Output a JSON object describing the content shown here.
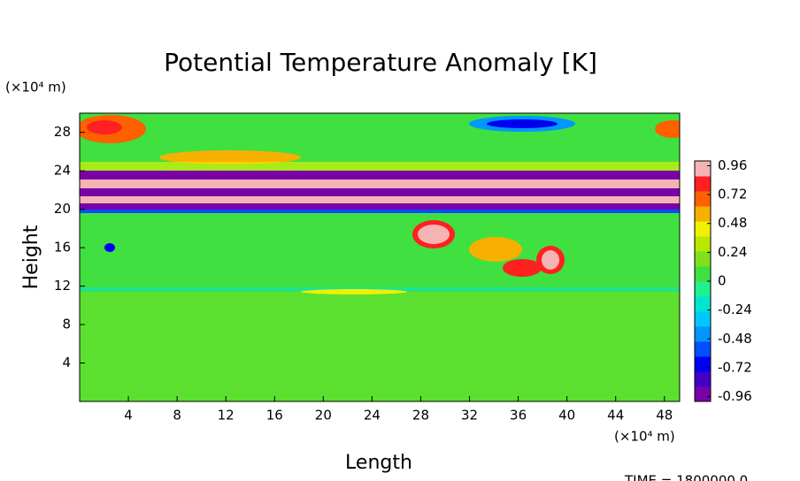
{
  "chart_data": {
    "type": "contour",
    "title": "Potential Temperature Anomaly [K]",
    "x_label": "Length",
    "y_label": "Height",
    "x_unit": "(×10⁴ m)",
    "y_unit": "(×10⁴ m)",
    "footer": "TIME = 1800000.0",
    "xlim": [
      0,
      49.25
    ],
    "xticks": [
      4,
      8,
      12,
      16,
      20,
      24,
      28,
      32,
      36,
      40,
      44,
      48
    ],
    "ylim": [
      0,
      30
    ],
    "yticks": [
      4,
      8,
      12,
      16,
      20,
      24,
      28
    ],
    "clim": [
      -1,
      1
    ],
    "cticks": [
      0.96,
      0.72,
      0.48,
      0.24,
      0,
      -0.24,
      -0.48,
      -0.72,
      -0.96
    ],
    "colors": [
      "#7a00a8",
      "#4000c8",
      "#0000f0",
      "#0050ff",
      "#0096ff",
      "#00c8ff",
      "#00e6d0",
      "#20f090",
      "#40e040",
      "#80e020",
      "#b8e800",
      "#f0f000",
      "#f8b000",
      "#ff6000",
      "#ff2020",
      "#f5b4b4"
    ]
  }
}
